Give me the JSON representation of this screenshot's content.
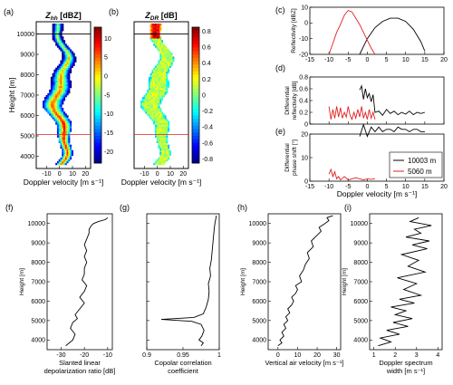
{
  "chart_data": [
    {
      "id": "a",
      "panel_label": "(a)",
      "type": "heatmap",
      "title": "Z_hh [dBZ]",
      "title_main": "Z",
      "title_sub": "hh",
      "title_unit": "[dBZ]",
      "xlabel": "Doppler velocity [m s⁻¹]",
      "ylabel": "Height [m]",
      "xlim": [
        -18,
        24
      ],
      "ylim": [
        3400,
        10600
      ],
      "xticks": [
        -10,
        0,
        10,
        20
      ],
      "yticks": [
        4000,
        5000,
        6000,
        7000,
        8000,
        9000,
        10000
      ],
      "colorbar": {
        "ticks": [
          10,
          5,
          0,
          -5,
          -10,
          -15,
          -20
        ],
        "range": [
          -23,
          13
        ],
        "colormap": "jet"
      },
      "reference_lines": [
        {
          "y": 10003,
          "color": "#000000"
        },
        {
          "y": 5060,
          "color": "#e02020"
        }
      ]
    },
    {
      "id": "b",
      "panel_label": "(b)",
      "type": "heatmap",
      "title": "Z_DR [dB]",
      "title_main": "Z",
      "title_sub": "DR",
      "title_unit": "[dB]",
      "xlabel": "Doppler velocity [m s⁻¹]",
      "xlim": [
        -18,
        24
      ],
      "ylim": [
        3400,
        10600
      ],
      "xticks": [
        -10,
        0,
        10,
        20
      ],
      "colorbar": {
        "ticks": [
          0.8,
          0.6,
          0.4,
          0.2,
          0,
          -0.2,
          -0.4,
          -0.6,
          -0.8
        ],
        "range": [
          -0.85,
          0.85
        ],
        "colormap": "jet"
      },
      "reference_lines": [
        {
          "y": 10003,
          "color": "#000000"
        },
        {
          "y": 5060,
          "color": "#e02020"
        }
      ]
    },
    {
      "id": "c",
      "panel_label": "(c)",
      "type": "line",
      "ylabel": "Reflectivity [dBZ]",
      "xlim": [
        -15,
        20
      ],
      "ylim": [
        -20,
        10
      ],
      "xticks": [
        -15,
        -10,
        -5,
        0,
        5,
        10,
        15,
        20
      ],
      "yticks": [
        -20,
        -10,
        0,
        10
      ],
      "series": [
        {
          "name": "10003 m",
          "color": "#000000",
          "x": [
            -2,
            0,
            2,
            4,
            6,
            8,
            10,
            12,
            14,
            15
          ],
          "y": [
            -20,
            -10,
            -3,
            1,
            3,
            3,
            1,
            -4,
            -12,
            -18
          ]
        },
        {
          "name": "5060 m",
          "color": "#e02020",
          "x": [
            -10,
            -9,
            -8,
            -7,
            -6,
            -5,
            -4,
            -3,
            -2,
            -1,
            0,
            1,
            2
          ],
          "y": [
            -20,
            -13,
            -6,
            -1,
            5,
            8,
            7,
            3,
            -1,
            -6,
            -11,
            -16,
            -20
          ]
        }
      ]
    },
    {
      "id": "d",
      "panel_label": "(d)",
      "type": "line",
      "ylabel": "Differential reflectivity [dB]",
      "xlim": [
        -15,
        20
      ],
      "ylim": [
        0,
        0.8
      ],
      "xticks": [
        -15,
        -10,
        -5,
        0,
        5,
        10,
        15,
        20
      ],
      "yticks": [
        0,
        0.2,
        0.4,
        0.6,
        0.8
      ],
      "series": [
        {
          "name": "10003 m",
          "color": "#000000",
          "x": [
            -2,
            -1.5,
            -1,
            -0.5,
            0,
            0.5,
            1,
            1.5,
            2,
            3,
            4,
            5,
            6,
            7,
            8,
            9,
            10,
            11,
            12,
            13,
            14,
            15
          ],
          "y": [
            0.58,
            0.65,
            0.42,
            0.6,
            0.45,
            0.52,
            0.38,
            0.5,
            0.2,
            0.22,
            0.15,
            0.25,
            0.18,
            0.22,
            0.16,
            0.2,
            0.17,
            0.22,
            0.16,
            0.2,
            0.18,
            0.2
          ]
        },
        {
          "name": "5060 m",
          "color": "#e02020",
          "x": [
            -10,
            -9.5,
            -9,
            -8.5,
            -8,
            -7.5,
            -7,
            -6.5,
            -6,
            -5.5,
            -5,
            -4.5,
            -4,
            -3.5,
            -3,
            -2.5,
            -2,
            -1.5,
            -1,
            -0.5,
            0,
            0.5,
            1,
            1.5,
            2
          ],
          "y": [
            0.3,
            0.08,
            0.25,
            0.1,
            0.3,
            0.12,
            0.28,
            0.1,
            0.2,
            0.12,
            0.3,
            0.15,
            0.08,
            0.2,
            0.1,
            0.25,
            0.12,
            0.3,
            0.1,
            0.2,
            0.08,
            0.25,
            0.1,
            0.2,
            0.08
          ]
        }
      ]
    },
    {
      "id": "e",
      "panel_label": "(e)",
      "type": "line",
      "ylabel": "Differential phase shift [°]",
      "xlabel": "Doppler velocity [m s⁻¹]",
      "xlim": [
        -15,
        20
      ],
      "ylim": [
        0,
        20
      ],
      "xticks": [
        -15,
        -10,
        -5,
        0,
        5,
        10,
        15,
        20
      ],
      "yticks": [
        0,
        10,
        20
      ],
      "legend": "bottom-right",
      "series": [
        {
          "name": "10003 m",
          "color": "#000000",
          "x": [
            -2,
            -1,
            0,
            1,
            2,
            3,
            4,
            5,
            6,
            7,
            8,
            9,
            10,
            11,
            12,
            13,
            14,
            15
          ],
          "y": [
            19,
            24,
            19,
            23,
            21,
            23,
            21,
            22,
            22,
            21,
            23,
            22,
            22,
            21,
            22,
            22,
            21,
            21
          ]
        },
        {
          "name": "5060 m",
          "color": "#e02020",
          "x": [
            -10,
            -9.5,
            -9,
            -8.5,
            -8,
            -7.5,
            -7,
            -6,
            -5,
            -4,
            -3,
            -2,
            -1,
            0,
            1,
            2
          ],
          "y": [
            3,
            5,
            2,
            4,
            1,
            2,
            0.5,
            2,
            0.5,
            1,
            1.5,
            1,
            0.5,
            1,
            0.8,
            1
          ]
        }
      ]
    },
    {
      "id": "f",
      "panel_label": "(f)",
      "type": "line",
      "xlabel": "Slanted linear depolarization ratio [dB]",
      "ylabel": "Height [m]",
      "xlim": [
        -36,
        -8
      ],
      "ylim": [
        3500,
        10500
      ],
      "xticks": [
        -30,
        -20,
        -10
      ],
      "yticks": [
        4000,
        5000,
        6000,
        7000,
        8000,
        9000,
        10000
      ],
      "series": [
        {
          "color": "#000000",
          "x": [
            -28,
            -27,
            -25,
            -24,
            -26,
            -25,
            -23,
            -24,
            -22,
            -20,
            -22,
            -20,
            -19,
            -21,
            -20,
            -20,
            -19,
            -20,
            -19,
            -20,
            -19,
            -18,
            -18,
            -17,
            -16,
            -14,
            -11,
            -10
          ],
          "y": [
            3700,
            3800,
            4000,
            4300,
            4600,
            4900,
            5100,
            5300,
            5600,
            5900,
            6200,
            6500,
            6800,
            7100,
            7400,
            7700,
            8000,
            8300,
            8600,
            8900,
            9200,
            9500,
            9700,
            9900,
            10000,
            10100,
            10200,
            10300
          ]
        }
      ]
    },
    {
      "id": "g",
      "panel_label": "(g)",
      "type": "line",
      "xlabel": "Copolar correlation coefficient",
      "xlim": [
        0.9,
        1.0
      ],
      "ylim": [
        3500,
        10500
      ],
      "xticks": [
        0.9,
        0.95,
        1
      ],
      "yticks": [
        4000,
        5000,
        6000,
        7000,
        8000,
        9000,
        10000
      ],
      "series": [
        {
          "color": "#000000",
          "x": [
            0.975,
            0.978,
            0.972,
            0.976,
            0.979,
            0.975,
            0.962,
            0.92,
            0.965,
            0.978,
            0.982,
            0.985,
            0.986,
            0.985,
            0.988,
            0.987,
            0.989,
            0.99,
            0.991,
            0.992,
            0.993,
            0.994,
            0.995,
            0.996
          ],
          "y": [
            3700,
            3850,
            4000,
            4200,
            4500,
            4800,
            4960,
            5060,
            5160,
            5350,
            5700,
            6100,
            6500,
            6900,
            7300,
            7700,
            8100,
            8500,
            8900,
            9300,
            9700,
            10000,
            10200,
            10400
          ]
        }
      ]
    },
    {
      "id": "h",
      "panel_label": "(h)",
      "type": "line",
      "xlabel": "Vertical air velocity [m s⁻¹]",
      "ylabel": "Height [m]",
      "xlim": [
        -5,
        32
      ],
      "ylim": [
        3500,
        10500
      ],
      "xticks": [
        0,
        10,
        20,
        30
      ],
      "yticks": [
        4000,
        5000,
        6000,
        7000,
        8000,
        9000,
        10000
      ],
      "series": [
        {
          "color": "#000000",
          "x": [
            0,
            2,
            1,
            3,
            2,
            4,
            3,
            5,
            4,
            6,
            5,
            7,
            8,
            7,
            9,
            10,
            9,
            12,
            11,
            13,
            14,
            16,
            15,
            18,
            17,
            20,
            22,
            21,
            24,
            26,
            25,
            28
          ],
          "y": [
            3700,
            3850,
            4000,
            4200,
            4400,
            4600,
            4800,
            5000,
            5200,
            5400,
            5600,
            5800,
            6000,
            6200,
            6400,
            6600,
            6800,
            7000,
            7300,
            7600,
            7900,
            8200,
            8500,
            8800,
            9100,
            9400,
            9600,
            9800,
            10000,
            10150,
            10300,
            10400
          ]
        }
      ]
    },
    {
      "id": "i",
      "panel_label": "(i)",
      "type": "line",
      "xlabel": "Doppler spectrum width [m s⁻¹]",
      "ylabel": "Height [m]",
      "xlim": [
        0.8,
        4.2
      ],
      "ylim": [
        3500,
        10500
      ],
      "xticks": [
        1,
        2,
        3,
        4
      ],
      "yticks": [
        4000,
        5000,
        6000,
        7000,
        8000,
        9000,
        10000
      ],
      "series": [
        {
          "color": "#000000",
          "x": [
            1.2,
            1.8,
            1.3,
            2.2,
            1.6,
            2.6,
            1.9,
            2.8,
            2.0,
            2.5,
            1.8,
            2.9,
            2.2,
            3.2,
            2.4,
            3.0,
            2.1,
            3.4,
            2.6,
            3.1,
            2.3,
            3.5,
            2.8,
            3.6,
            2.5,
            3.2,
            2.9,
            3.7,
            2.7,
            3.1
          ],
          "y": [
            3700,
            3900,
            4100,
            4300,
            4500,
            4700,
            4900,
            5100,
            5300,
            5500,
            5700,
            5900,
            6100,
            6300,
            6600,
            6900,
            7200,
            7500,
            7800,
            8100,
            8400,
            8700,
            8900,
            9100,
            9300,
            9500,
            9700,
            9900,
            10100,
            10300
          ]
        }
      ]
    }
  ]
}
